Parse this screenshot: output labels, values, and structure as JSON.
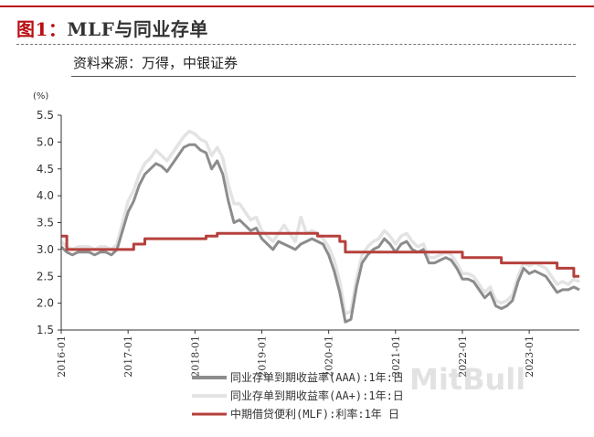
{
  "header": {
    "figure_label": "图1：",
    "figure_title": "MLF与同业存单",
    "source": "资料来源：万得，中银证券"
  },
  "watermark": "MitBull",
  "chart_data": {
    "type": "line",
    "y_unit": "(%)",
    "ylim": [
      1.5,
      5.5
    ],
    "yticks": [
      "5.5",
      "5.0",
      "4.5",
      "4.0",
      "3.5",
      "3.0",
      "2.5",
      "2.0",
      "1.5"
    ],
    "xlim": [
      "2016-01",
      "2023-10"
    ],
    "xticks": [
      "2016-01",
      "2017-01",
      "2018-01",
      "2019-01",
      "2020-01",
      "2021-01",
      "2022-01",
      "2023-01"
    ],
    "grid": false,
    "legend_position": "bottom-right",
    "colors": {
      "aaa": "#8c8c8c",
      "aa_plus": "#e3e3e3",
      "mlf": "#b5403c"
    },
    "series": [
      {
        "name": "同业存单到期收益率(AAA):1年:日",
        "color": "#8c8c8c",
        "points": [
          [
            "2016-01",
            3.05
          ],
          [
            "2016-02",
            2.95
          ],
          [
            "2016-03",
            2.9
          ],
          [
            "2016-04",
            2.95
          ],
          [
            "2016-05",
            2.95
          ],
          [
            "2016-06",
            2.95
          ],
          [
            "2016-07",
            2.9
          ],
          [
            "2016-08",
            2.95
          ],
          [
            "2016-09",
            2.95
          ],
          [
            "2016-10",
            2.9
          ],
          [
            "2016-11",
            3.0
          ],
          [
            "2016-12",
            3.35
          ],
          [
            "2017-01",
            3.7
          ],
          [
            "2017-02",
            3.9
          ],
          [
            "2017-03",
            4.2
          ],
          [
            "2017-04",
            4.4
          ],
          [
            "2017-05",
            4.5
          ],
          [
            "2017-06",
            4.6
          ],
          [
            "2017-07",
            4.55
          ],
          [
            "2017-08",
            4.45
          ],
          [
            "2017-09",
            4.6
          ],
          [
            "2017-10",
            4.75
          ],
          [
            "2017-11",
            4.9
          ],
          [
            "2017-12",
            4.95
          ],
          [
            "2018-01",
            4.95
          ],
          [
            "2018-02",
            4.85
          ],
          [
            "2018-03",
            4.8
          ],
          [
            "2018-04",
            4.5
          ],
          [
            "2018-05",
            4.65
          ],
          [
            "2018-06",
            4.4
          ],
          [
            "2018-07",
            3.9
          ],
          [
            "2018-08",
            3.5
          ],
          [
            "2018-09",
            3.55
          ],
          [
            "2018-10",
            3.45
          ],
          [
            "2018-11",
            3.35
          ],
          [
            "2018-12",
            3.4
          ],
          [
            "2019-01",
            3.2
          ],
          [
            "2019-02",
            3.1
          ],
          [
            "2019-03",
            3.0
          ],
          [
            "2019-04",
            3.15
          ],
          [
            "2019-05",
            3.1
          ],
          [
            "2019-06",
            3.05
          ],
          [
            "2019-07",
            3.0
          ],
          [
            "2019-08",
            3.1
          ],
          [
            "2019-09",
            3.15
          ],
          [
            "2019-10",
            3.2
          ],
          [
            "2019-11",
            3.15
          ],
          [
            "2019-12",
            3.1
          ],
          [
            "2020-01",
            2.9
          ],
          [
            "2020-02",
            2.6
          ],
          [
            "2020-03",
            2.2
          ],
          [
            "2020-04",
            1.65
          ],
          [
            "2020-05",
            1.7
          ],
          [
            "2020-06",
            2.3
          ],
          [
            "2020-07",
            2.75
          ],
          [
            "2020-08",
            2.9
          ],
          [
            "2020-09",
            3.0
          ],
          [
            "2020-10",
            3.05
          ],
          [
            "2020-11",
            3.2
          ],
          [
            "2020-12",
            3.1
          ],
          [
            "2021-01",
            2.95
          ],
          [
            "2021-02",
            3.1
          ],
          [
            "2021-03",
            3.15
          ],
          [
            "2021-04",
            3.0
          ],
          [
            "2021-05",
            2.95
          ],
          [
            "2021-06",
            3.0
          ],
          [
            "2021-07",
            2.75
          ],
          [
            "2021-08",
            2.75
          ],
          [
            "2021-09",
            2.8
          ],
          [
            "2021-10",
            2.85
          ],
          [
            "2021-11",
            2.8
          ],
          [
            "2021-12",
            2.65
          ],
          [
            "2022-01",
            2.45
          ],
          [
            "2022-02",
            2.45
          ],
          [
            "2022-03",
            2.4
          ],
          [
            "2022-04",
            2.25
          ],
          [
            "2022-05",
            2.1
          ],
          [
            "2022-06",
            2.2
          ],
          [
            "2022-07",
            1.95
          ],
          [
            "2022-08",
            1.9
          ],
          [
            "2022-09",
            1.95
          ],
          [
            "2022-10",
            2.05
          ],
          [
            "2022-11",
            2.4
          ],
          [
            "2022-12",
            2.65
          ],
          [
            "2023-01",
            2.55
          ],
          [
            "2023-02",
            2.6
          ],
          [
            "2023-03",
            2.55
          ],
          [
            "2023-04",
            2.5
          ],
          [
            "2023-05",
            2.35
          ],
          [
            "2023-06",
            2.2
          ],
          [
            "2023-07",
            2.25
          ],
          [
            "2023-08",
            2.25
          ],
          [
            "2023-09",
            2.3
          ],
          [
            "2023-10",
            2.25
          ]
        ]
      },
      {
        "name": "同业存单到期收益率(AA+):1年:日",
        "color": "#e3e3e3",
        "points": [
          [
            "2016-01",
            3.15
          ],
          [
            "2016-02",
            3.05
          ],
          [
            "2016-03",
            3.0
          ],
          [
            "2016-04",
            3.05
          ],
          [
            "2016-05",
            3.05
          ],
          [
            "2016-06",
            3.05
          ],
          [
            "2016-07",
            3.0
          ],
          [
            "2016-08",
            3.05
          ],
          [
            "2016-09",
            3.05
          ],
          [
            "2016-10",
            3.0
          ],
          [
            "2016-11",
            3.1
          ],
          [
            "2016-12",
            3.5
          ],
          [
            "2017-01",
            3.9
          ],
          [
            "2017-02",
            4.1
          ],
          [
            "2017-03",
            4.4
          ],
          [
            "2017-04",
            4.6
          ],
          [
            "2017-05",
            4.7
          ],
          [
            "2017-06",
            4.85
          ],
          [
            "2017-07",
            4.75
          ],
          [
            "2017-08",
            4.65
          ],
          [
            "2017-09",
            4.8
          ],
          [
            "2017-10",
            4.95
          ],
          [
            "2017-11",
            5.1
          ],
          [
            "2017-12",
            5.2
          ],
          [
            "2018-01",
            5.15
          ],
          [
            "2018-02",
            5.05
          ],
          [
            "2018-03",
            5.0
          ],
          [
            "2018-04",
            4.75
          ],
          [
            "2018-05",
            4.9
          ],
          [
            "2018-06",
            4.7
          ],
          [
            "2018-07",
            4.2
          ],
          [
            "2018-08",
            3.85
          ],
          [
            "2018-09",
            3.85
          ],
          [
            "2018-10",
            3.7
          ],
          [
            "2018-11",
            3.55
          ],
          [
            "2018-12",
            3.6
          ],
          [
            "2019-01",
            3.35
          ],
          [
            "2019-02",
            3.25
          ],
          [
            "2019-03",
            3.15
          ],
          [
            "2019-04",
            3.3
          ],
          [
            "2019-05",
            3.45
          ],
          [
            "2019-06",
            3.3
          ],
          [
            "2019-07",
            3.15
          ],
          [
            "2019-08",
            3.6
          ],
          [
            "2019-09",
            3.3
          ],
          [
            "2019-10",
            3.35
          ],
          [
            "2019-11",
            3.3
          ],
          [
            "2019-12",
            3.2
          ],
          [
            "2020-01",
            3.05
          ],
          [
            "2020-02",
            2.8
          ],
          [
            "2020-03",
            2.4
          ],
          [
            "2020-04",
            1.8
          ],
          [
            "2020-05",
            1.85
          ],
          [
            "2020-06",
            2.45
          ],
          [
            "2020-07",
            2.9
          ],
          [
            "2020-08",
            3.05
          ],
          [
            "2020-09",
            3.15
          ],
          [
            "2020-10",
            3.2
          ],
          [
            "2020-11",
            3.35
          ],
          [
            "2020-12",
            3.25
          ],
          [
            "2021-01",
            3.1
          ],
          [
            "2021-02",
            3.25
          ],
          [
            "2021-03",
            3.3
          ],
          [
            "2021-04",
            3.15
          ],
          [
            "2021-05",
            3.05
          ],
          [
            "2021-06",
            3.1
          ],
          [
            "2021-07",
            2.85
          ],
          [
            "2021-08",
            2.85
          ],
          [
            "2021-09",
            2.9
          ],
          [
            "2021-10",
            2.95
          ],
          [
            "2021-11",
            2.9
          ],
          [
            "2021-12",
            2.75
          ],
          [
            "2022-01",
            2.55
          ],
          [
            "2022-02",
            2.55
          ],
          [
            "2022-03",
            2.5
          ],
          [
            "2022-04",
            2.35
          ],
          [
            "2022-05",
            2.2
          ],
          [
            "2022-06",
            2.3
          ],
          [
            "2022-07",
            2.05
          ],
          [
            "2022-08",
            2.0
          ],
          [
            "2022-09",
            2.05
          ],
          [
            "2022-10",
            2.15
          ],
          [
            "2022-11",
            2.5
          ],
          [
            "2022-12",
            2.75
          ],
          [
            "2023-01",
            2.7
          ],
          [
            "2023-02",
            2.75
          ],
          [
            "2023-03",
            2.7
          ],
          [
            "2023-04",
            2.65
          ],
          [
            "2023-05",
            2.5
          ],
          [
            "2023-06",
            2.35
          ],
          [
            "2023-07",
            2.4
          ],
          [
            "2023-08",
            2.35
          ],
          [
            "2023-09",
            2.45
          ],
          [
            "2023-10",
            2.4
          ]
        ]
      },
      {
        "name": "中期借贷便利(MLF):利率:1年 日",
        "color": "#b5403c",
        "step": true,
        "points": [
          [
            "2016-01",
            3.25
          ],
          [
            "2016-02",
            3.0
          ],
          [
            "2017-02",
            3.1
          ],
          [
            "2017-04",
            3.2
          ],
          [
            "2018-03",
            3.25
          ],
          [
            "2018-05",
            3.3
          ],
          [
            "2019-11",
            3.25
          ],
          [
            "2020-03",
            3.15
          ],
          [
            "2020-04",
            2.95
          ],
          [
            "2022-01",
            2.85
          ],
          [
            "2022-08",
            2.75
          ],
          [
            "2023-06",
            2.65
          ],
          [
            "2023-09",
            2.5
          ],
          [
            "2023-10",
            2.5
          ]
        ]
      }
    ]
  }
}
